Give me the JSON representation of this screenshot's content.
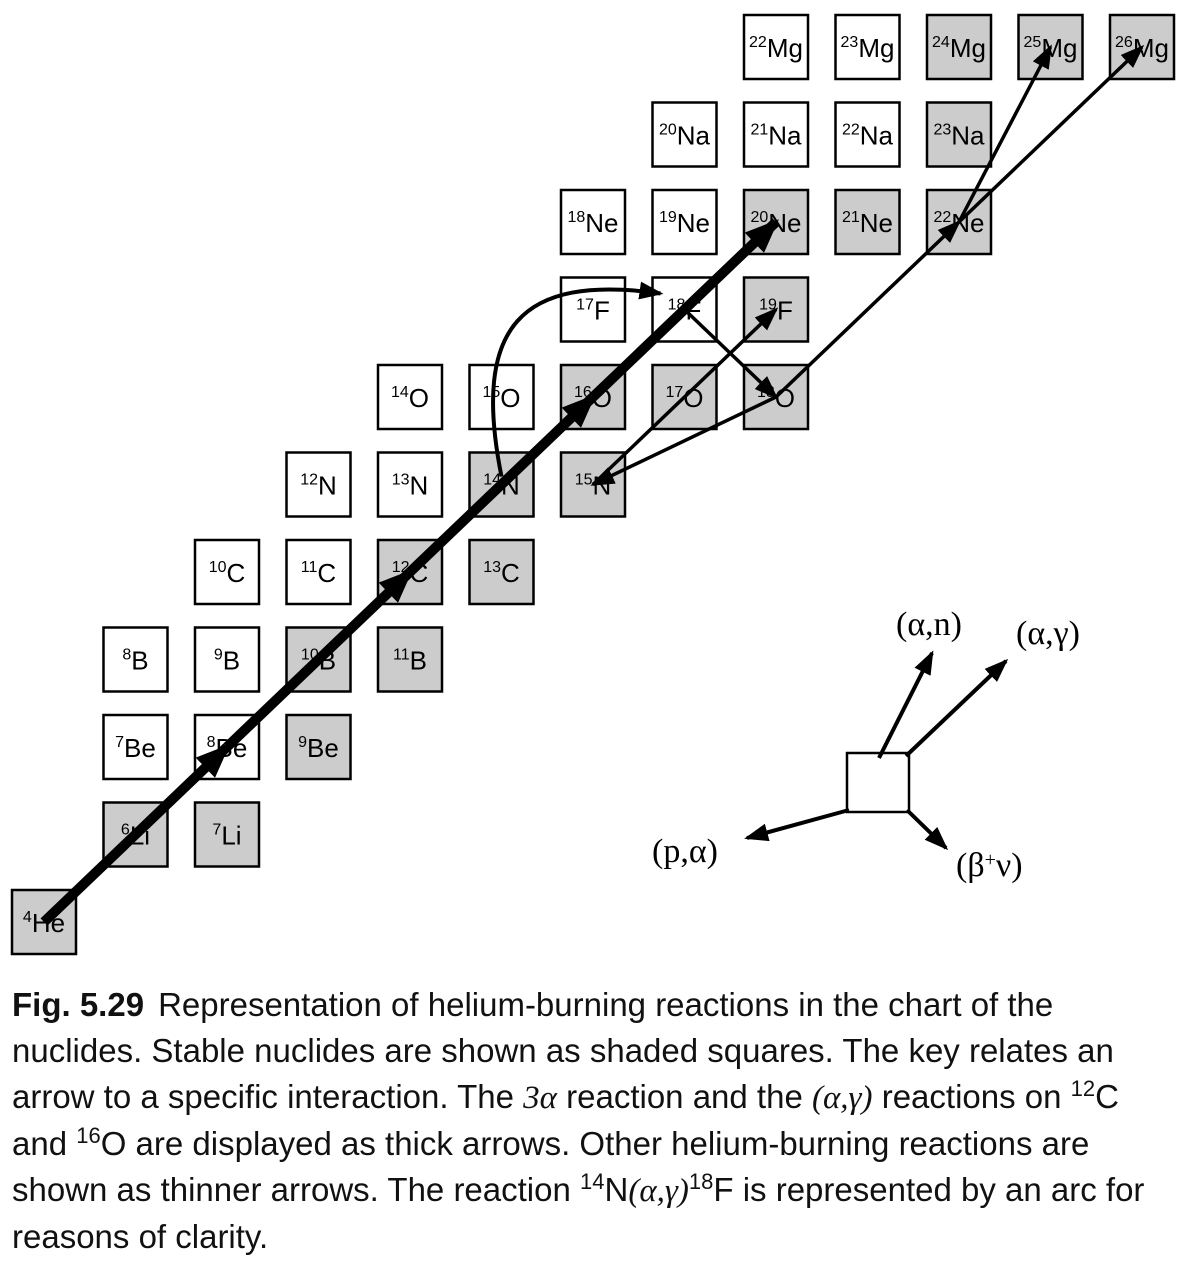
{
  "nuclides": [
    {
      "id": "He4",
      "mass": "4",
      "sym": "He",
      "stable": true
    },
    {
      "id": "Li6",
      "mass": "6",
      "sym": "Li",
      "stable": true
    },
    {
      "id": "Li7",
      "mass": "7",
      "sym": "Li",
      "stable": true
    },
    {
      "id": "Be7",
      "mass": "7",
      "sym": "Be",
      "stable": false
    },
    {
      "id": "Be8",
      "mass": "8",
      "sym": "Be",
      "stable": false
    },
    {
      "id": "Be9",
      "mass": "9",
      "sym": "Be",
      "stable": true
    },
    {
      "id": "B8",
      "mass": "8",
      "sym": "B",
      "stable": false
    },
    {
      "id": "B9",
      "mass": "9",
      "sym": "B",
      "stable": false
    },
    {
      "id": "B10",
      "mass": "10",
      "sym": "B",
      "stable": true
    },
    {
      "id": "B11",
      "mass": "11",
      "sym": "B",
      "stable": true
    },
    {
      "id": "C10",
      "mass": "10",
      "sym": "C",
      "stable": false
    },
    {
      "id": "C11",
      "mass": "11",
      "sym": "C",
      "stable": false
    },
    {
      "id": "C12",
      "mass": "12",
      "sym": "C",
      "stable": true
    },
    {
      "id": "C13",
      "mass": "13",
      "sym": "C",
      "stable": true
    },
    {
      "id": "N12",
      "mass": "12",
      "sym": "N",
      "stable": false
    },
    {
      "id": "N13",
      "mass": "13",
      "sym": "N",
      "stable": false
    },
    {
      "id": "N14",
      "mass": "14",
      "sym": "N",
      "stable": true
    },
    {
      "id": "N15",
      "mass": "15",
      "sym": "N",
      "stable": true
    },
    {
      "id": "O14",
      "mass": "14",
      "sym": "O",
      "stable": false
    },
    {
      "id": "O15",
      "mass": "15",
      "sym": "O",
      "stable": false
    },
    {
      "id": "O16",
      "mass": "16",
      "sym": "O",
      "stable": true
    },
    {
      "id": "O17",
      "mass": "17",
      "sym": "O",
      "stable": true
    },
    {
      "id": "O18",
      "mass": "18",
      "sym": "O",
      "stable": true
    },
    {
      "id": "F17",
      "mass": "17",
      "sym": "F",
      "stable": false
    },
    {
      "id": "F18",
      "mass": "18",
      "sym": "F",
      "stable": false
    },
    {
      "id": "F19",
      "mass": "19",
      "sym": "F",
      "stable": true
    },
    {
      "id": "Ne18",
      "mass": "18",
      "sym": "Ne",
      "stable": false
    },
    {
      "id": "Ne19",
      "mass": "19",
      "sym": "Ne",
      "stable": false
    },
    {
      "id": "Ne20",
      "mass": "20",
      "sym": "Ne",
      "stable": true
    },
    {
      "id": "Ne21",
      "mass": "21",
      "sym": "Ne",
      "stable": true
    },
    {
      "id": "Ne22",
      "mass": "22",
      "sym": "Ne",
      "stable": true
    },
    {
      "id": "Na20",
      "mass": "20",
      "sym": "Na",
      "stable": false
    },
    {
      "id": "Na21",
      "mass": "21",
      "sym": "Na",
      "stable": false
    },
    {
      "id": "Na22",
      "mass": "22",
      "sym": "Na",
      "stable": false
    },
    {
      "id": "Na23",
      "mass": "23",
      "sym": "Na",
      "stable": true
    },
    {
      "id": "Mg22",
      "mass": "22",
      "sym": "Mg",
      "stable": false
    },
    {
      "id": "Mg23",
      "mass": "23",
      "sym": "Mg",
      "stable": false
    },
    {
      "id": "Mg24",
      "mass": "24",
      "sym": "Mg",
      "stable": true
    },
    {
      "id": "Mg25",
      "mass": "25",
      "sym": "Mg",
      "stable": true
    },
    {
      "id": "Mg26",
      "mass": "26",
      "sym": "Mg",
      "stable": true
    }
  ],
  "reactions": [
    {
      "from": "He4",
      "to": "Be8",
      "style": "thick"
    },
    {
      "from": "Be8",
      "to": "C12",
      "style": "thick"
    },
    {
      "from": "C12",
      "to": "O16",
      "style": "thick"
    },
    {
      "from": "O16",
      "to": "Ne20",
      "style": "thick"
    },
    {
      "from": "N14",
      "to": "F18",
      "style": "arc"
    },
    {
      "from": "F18",
      "to": "O18",
      "style": "thin"
    },
    {
      "from": "O18",
      "to": "N15",
      "style": "thin"
    },
    {
      "from": "N15",
      "to": "F19",
      "style": "thin"
    },
    {
      "from": "O18",
      "to": "Ne22",
      "style": "thin"
    },
    {
      "from": "Ne22",
      "to": "Mg25",
      "style": "thin"
    },
    {
      "from": "Ne22",
      "to": "Mg26",
      "style": "thin"
    }
  ],
  "key": {
    "alpha_n": "(α,n)",
    "alpha_gamma": "(α,γ)",
    "p_alpha": "(p,α)",
    "beta_nu_open": "(β",
    "beta_nu_sup": "+",
    "beta_nu_close": "ν)"
  },
  "colors": {
    "stable_fill": "#cccccc",
    "unstable_fill": "#ffffff",
    "stroke": "#000000"
  },
  "caption": {
    "fig_label": "Fig. 5.29",
    "p1": "Representation of helium-burning reactions in the chart of the nuclides. Stable nuclides are shown as shaded squares. The key relates an arrow to a specific interaction. The ",
    "m_3alpha": "3α",
    "p2": " reaction and the ",
    "m_ag_1": "(α,γ)",
    "p3": " reactions on ",
    "sup_12": "12",
    "p4": "C and ",
    "sup_16": "16",
    "p5": "O are displayed as thick arrows. Other helium-burning reactions are shown as thinner arrows. The reaction ",
    "sup_14": "14",
    "p6": "N",
    "m_ag_2": "(α,γ)",
    "sup_18": "18",
    "p7": "F is represented by an arc for reasons of clarity."
  }
}
